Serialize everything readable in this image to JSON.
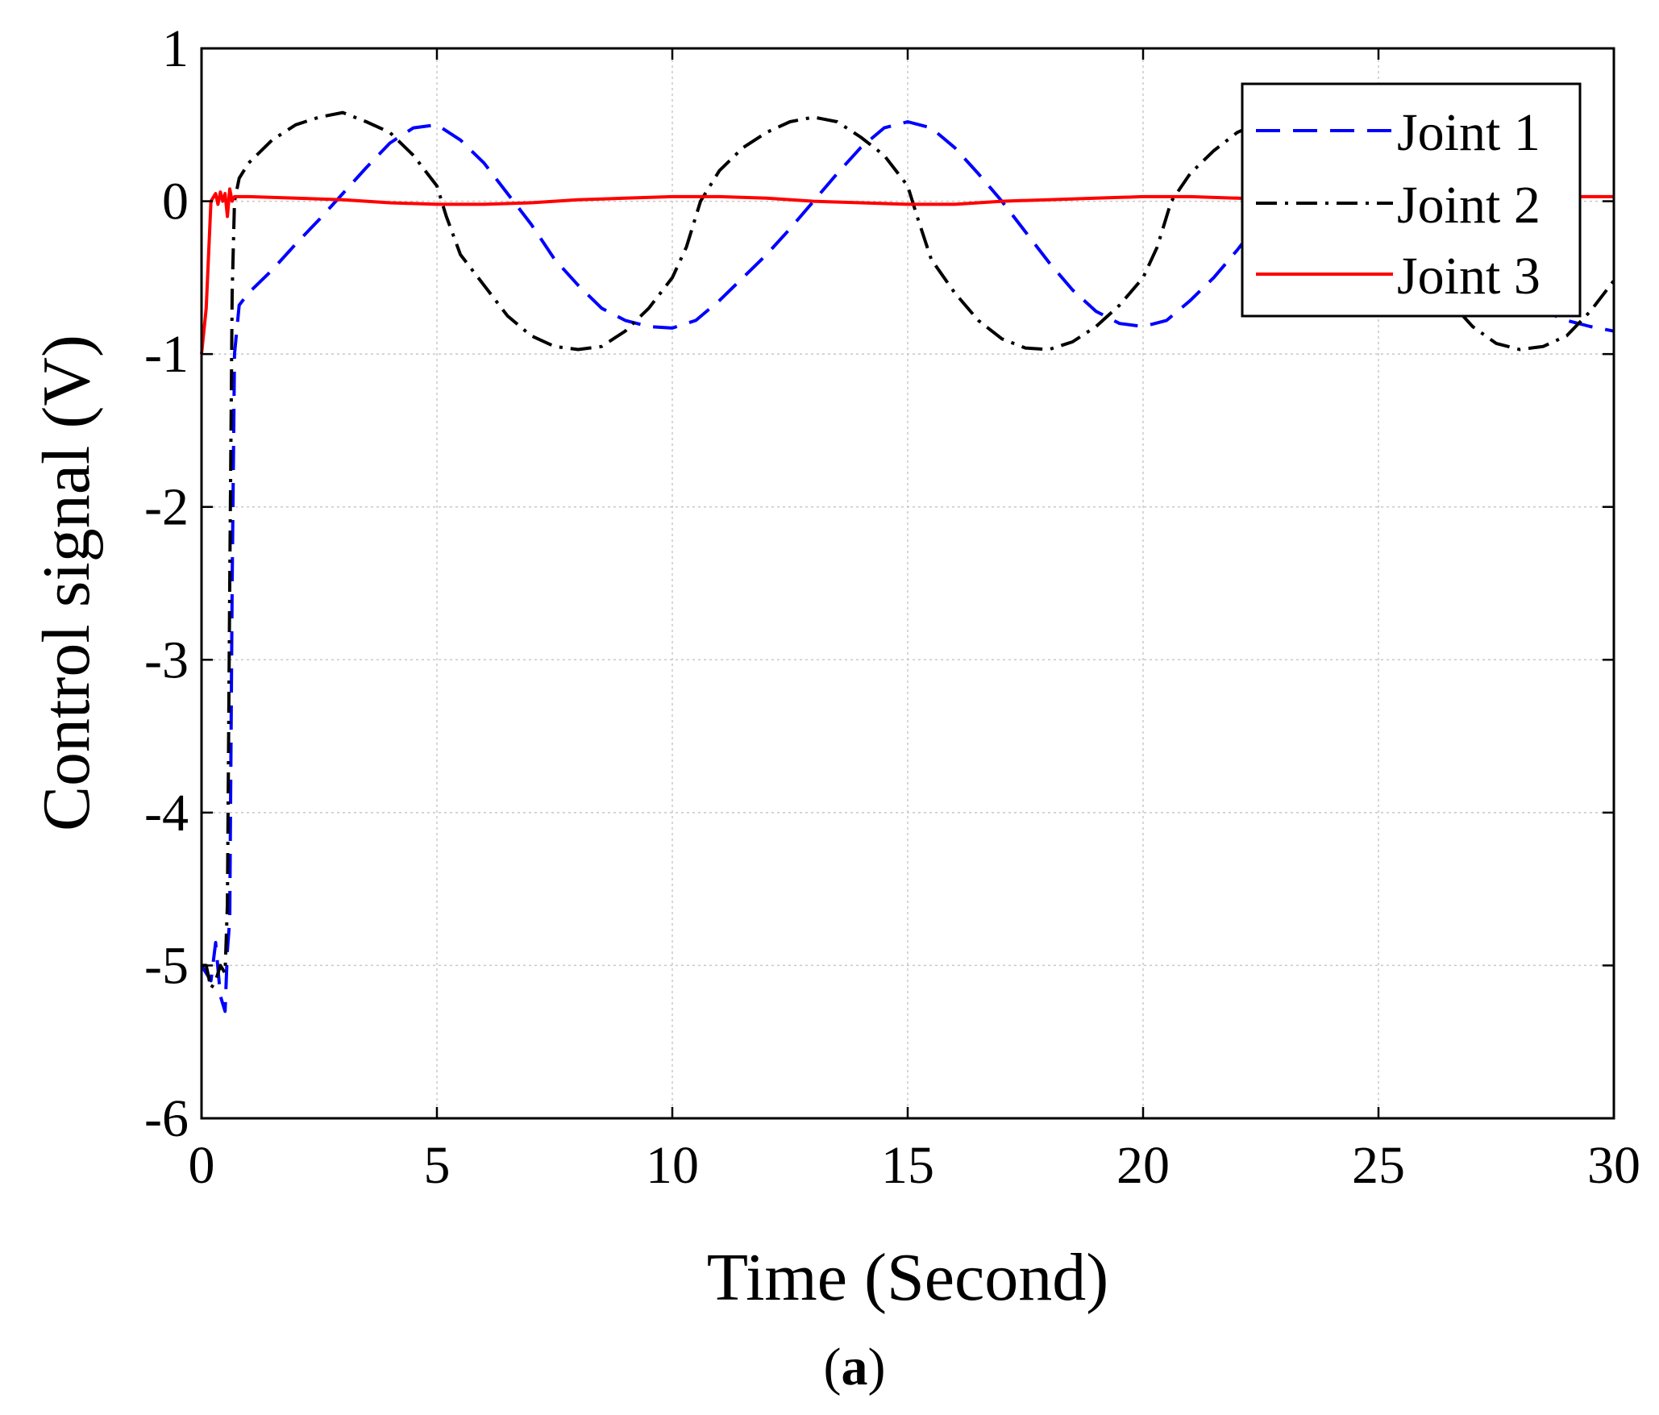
{
  "chart_data": {
    "type": "line",
    "xlabel": "Time (Second)",
    "ylabel": "Control signal (V)",
    "caption_letter": "a",
    "xlim": [
      0,
      30
    ],
    "ylim": [
      -6,
      1
    ],
    "xticks": [
      0,
      5,
      10,
      15,
      20,
      25,
      30
    ],
    "yticks": [
      1,
      0,
      -1,
      -2,
      -3,
      -4,
      -5,
      -6
    ],
    "xtick_labels": [
      "0",
      "5",
      "10",
      "15",
      "20",
      "25",
      "30"
    ],
    "ytick_labels": [
      "1",
      "0",
      "-1",
      "-2",
      "-3",
      "-4",
      "-5",
      "-6"
    ],
    "grid": true,
    "legend_position": "top-right",
    "series": [
      {
        "name": "Joint 1",
        "color": "#0000ff",
        "dash": "dashed",
        "x": [
          0.0,
          0.1,
          0.2,
          0.3,
          0.4,
          0.5,
          0.55,
          0.6,
          0.65,
          0.7,
          0.8,
          1.0,
          1.5,
          2.0,
          2.5,
          3.0,
          3.5,
          4.0,
          4.5,
          5.0,
          5.5,
          6.0,
          6.5,
          7.0,
          7.5,
          8.0,
          8.5,
          9.0,
          9.5,
          10.0,
          10.5,
          11.0,
          11.5,
          12.0,
          12.5,
          13.0,
          13.5,
          14.0,
          14.5,
          15.0,
          15.5,
          16.0,
          16.5,
          17.0,
          17.5,
          18.0,
          18.5,
          19.0,
          19.5,
          20.0,
          20.5,
          21.0,
          21.5,
          22.0,
          22.5,
          23.0,
          23.5,
          24.0,
          24.5,
          25.0,
          25.5,
          26.0,
          26.5,
          27.0,
          27.5,
          28.0,
          28.5,
          29.0,
          29.5,
          30.0
        ],
        "y": [
          -5.0,
          -5.05,
          -5.1,
          -4.85,
          -5.2,
          -5.3,
          -4.9,
          -4.7,
          -2.5,
          -1.0,
          -0.68,
          -0.6,
          -0.45,
          -0.28,
          -0.12,
          0.05,
          0.22,
          0.38,
          0.48,
          0.5,
          0.4,
          0.25,
          0.05,
          -0.15,
          -0.38,
          -0.55,
          -0.7,
          -0.78,
          -0.82,
          -0.83,
          -0.78,
          -0.65,
          -0.5,
          -0.35,
          -0.18,
          0.0,
          0.18,
          0.35,
          0.48,
          0.52,
          0.48,
          0.35,
          0.18,
          0.0,
          -0.2,
          -0.4,
          -0.58,
          -0.72,
          -0.8,
          -0.82,
          -0.78,
          -0.65,
          -0.5,
          -0.32,
          -0.12,
          0.08,
          0.25,
          0.4,
          0.5,
          0.5,
          0.4,
          0.25,
          0.05,
          -0.2,
          -0.45,
          -0.62,
          -0.72,
          -0.78,
          -0.82,
          -0.85
        ]
      },
      {
        "name": "Joint 2",
        "color": "#000000",
        "dash": "dashdot",
        "x": [
          0.0,
          0.1,
          0.2,
          0.3,
          0.4,
          0.5,
          0.55,
          0.6,
          0.65,
          0.7,
          0.8,
          1.0,
          1.5,
          2.0,
          2.5,
          3.0,
          3.5,
          4.0,
          4.5,
          5.0,
          5.2,
          5.5,
          6.0,
          6.5,
          7.0,
          7.5,
          8.0,
          8.5,
          9.0,
          9.5,
          10.0,
          10.3,
          10.6,
          11.0,
          11.5,
          12.0,
          12.5,
          13.0,
          13.5,
          14.0,
          14.5,
          15.0,
          15.2,
          15.5,
          16.0,
          16.5,
          17.0,
          17.5,
          18.0,
          18.5,
          19.0,
          19.5,
          20.0,
          20.3,
          20.6,
          21.0,
          21.5,
          22.0,
          22.5,
          23.0,
          23.5,
          24.0,
          24.5,
          25.0,
          25.5,
          26.0,
          26.5,
          27.0,
          27.5,
          28.0,
          28.5,
          29.0,
          29.5,
          30.0
        ],
        "y": [
          -5.0,
          -5.0,
          -5.15,
          -5.1,
          -5.0,
          -5.05,
          -4.6,
          -2.5,
          -0.6,
          0.0,
          0.15,
          0.25,
          0.4,
          0.5,
          0.55,
          0.58,
          0.52,
          0.45,
          0.3,
          0.1,
          -0.1,
          -0.35,
          -0.55,
          -0.75,
          -0.88,
          -0.95,
          -0.97,
          -0.95,
          -0.85,
          -0.7,
          -0.5,
          -0.3,
          0.0,
          0.2,
          0.35,
          0.45,
          0.52,
          0.55,
          0.52,
          0.42,
          0.3,
          0.1,
          -0.1,
          -0.38,
          -0.6,
          -0.78,
          -0.9,
          -0.96,
          -0.97,
          -0.92,
          -0.82,
          -0.68,
          -0.5,
          -0.3,
          0.0,
          0.18,
          0.33,
          0.45,
          0.52,
          0.55,
          0.5,
          0.4,
          0.25,
          0.05,
          -0.2,
          -0.45,
          -0.65,
          -0.82,
          -0.93,
          -0.97,
          -0.95,
          -0.88,
          -0.72,
          -0.52
        ]
      },
      {
        "name": "Joint 3",
        "color": "#ff0000",
        "dash": "solid",
        "x": [
          0.0,
          0.1,
          0.2,
          0.3,
          0.35,
          0.4,
          0.45,
          0.5,
          0.55,
          0.6,
          0.65,
          0.7,
          1.0,
          2.0,
          3.0,
          4.0,
          5.0,
          6.0,
          7.0,
          8.0,
          9.0,
          10.0,
          11.0,
          12.0,
          13.0,
          14.0,
          15.0,
          16.0,
          17.0,
          18.0,
          19.0,
          20.0,
          21.0,
          22.0,
          23.0,
          24.0,
          25.0,
          26.0,
          27.0,
          28.0,
          29.0,
          30.0
        ],
        "y": [
          -1.0,
          -0.7,
          0.0,
          0.05,
          -0.02,
          0.06,
          0.0,
          0.05,
          -0.1,
          0.08,
          0.0,
          0.03,
          0.03,
          0.02,
          0.01,
          -0.01,
          -0.02,
          -0.02,
          -0.01,
          0.01,
          0.02,
          0.03,
          0.03,
          0.02,
          0.0,
          -0.01,
          -0.02,
          -0.02,
          0.0,
          0.01,
          0.02,
          0.03,
          0.03,
          0.02,
          0.01,
          0.0,
          -0.01,
          0.0,
          0.01,
          0.02,
          0.03,
          0.03
        ]
      }
    ]
  }
}
